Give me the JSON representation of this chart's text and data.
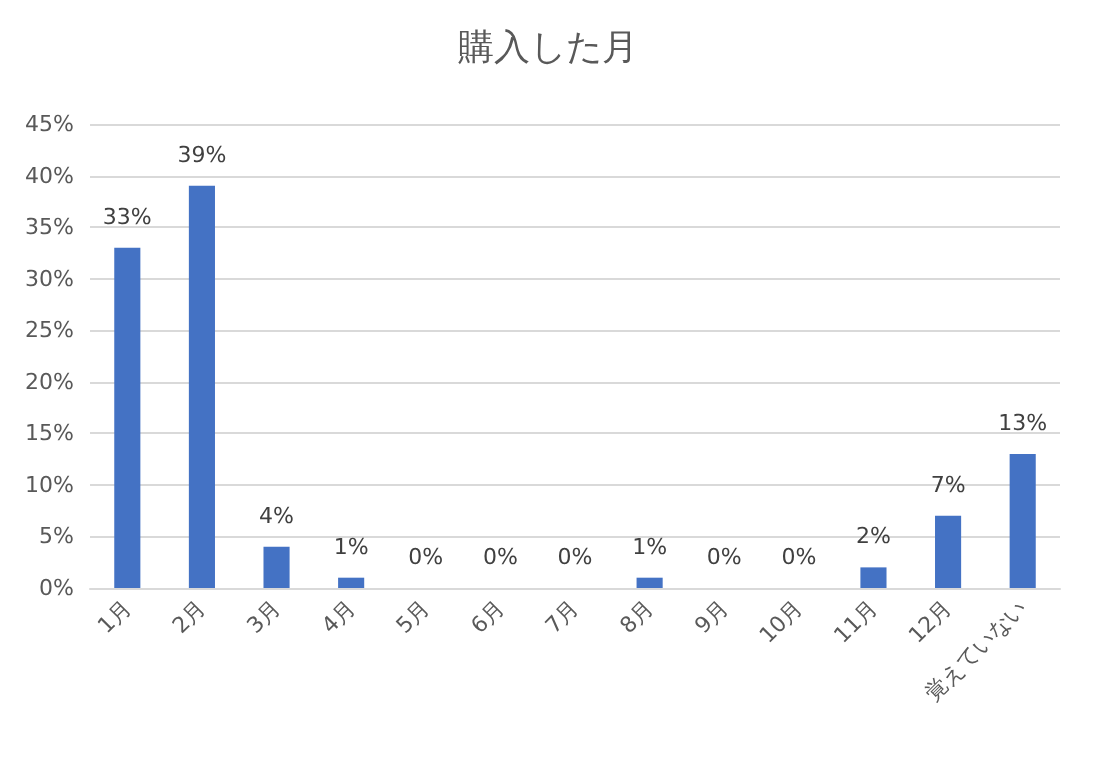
{
  "chart_data": {
    "type": "bar",
    "title": "購入した月",
    "categories": [
      "1月",
      "2月",
      "3月",
      "4月",
      "5月",
      "6月",
      "7月",
      "8月",
      "9月",
      "10月",
      "11月",
      "12月",
      "覚えていない"
    ],
    "values": [
      33,
      39,
      4,
      1,
      0,
      0,
      0,
      1,
      0,
      0,
      2,
      7,
      13
    ],
    "value_labels": [
      "33%",
      "39%",
      "4%",
      "1%",
      "0%",
      "0%",
      "0%",
      "1%",
      "0%",
      "0%",
      "2%",
      "7%",
      "13%"
    ],
    "color": "#4472c4",
    "ylim": [
      0,
      45
    ],
    "yticks": [
      {
        "value": 0,
        "label": "0%"
      },
      {
        "value": 5,
        "label": "5%"
      },
      {
        "value": 10,
        "label": "10%"
      },
      {
        "value": 15,
        "label": "15%"
      },
      {
        "value": 20,
        "label": "20%"
      },
      {
        "value": 25,
        "label": "25%"
      },
      {
        "value": 30,
        "label": "30%"
      },
      {
        "value": 35,
        "label": "35%"
      },
      {
        "value": 40,
        "label": "40%"
      },
      {
        "value": 45,
        "label": "45%"
      }
    ],
    "grid": "y"
  }
}
